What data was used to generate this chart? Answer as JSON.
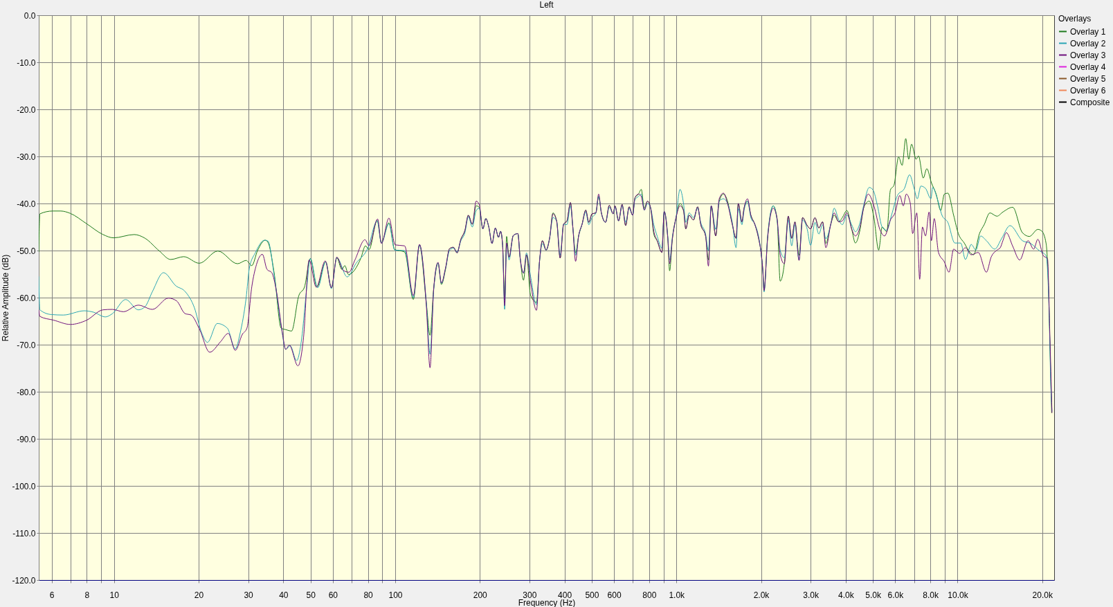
{
  "chart_data": {
    "type": "line",
    "title": "Left",
    "xlabel": "Frequency (Hz)",
    "ylabel": "Relative Amplitude (dB)",
    "legend_title": "Overlays",
    "log": "x",
    "grid": true,
    "legend": "top right",
    "xlim": [
      5.4,
      22050
    ],
    "ylim": [
      -120,
      0
    ],
    "xticks": [
      6,
      {
        "value": 7,
        "label": null
      },
      8,
      {
        "value": 9,
        "label": null
      },
      10,
      20,
      30,
      40,
      50,
      60,
      {
        "value": 70,
        "label": null
      },
      80,
      {
        "value": 90,
        "label": null
      },
      100,
      200,
      300,
      400,
      500,
      600,
      {
        "value": 700,
        "label": null
      },
      800,
      {
        "value": 900,
        "label": null
      },
      {
        "value": 1000,
        "label": "1.0k"
      },
      {
        "value": 2000,
        "label": "2.0k"
      },
      {
        "value": 3000,
        "label": "3.0k"
      },
      {
        "value": 4000,
        "label": "4.0k"
      },
      {
        "value": 5000,
        "label": "5.0k"
      },
      {
        "value": 6000,
        "label": "6.0k"
      },
      {
        "value": 7000,
        "label": null
      },
      {
        "value": 8000,
        "label": "8.0k"
      },
      {
        "value": 9000,
        "label": null
      },
      {
        "value": 10000,
        "label": "10.0k"
      },
      {
        "value": 20000,
        "label": "20.0k"
      }
    ],
    "yticks": [
      {
        "value": 0,
        "label": "0.0"
      },
      {
        "value": -10,
        "label": "-10.0"
      },
      {
        "value": -20,
        "label": "-20.0"
      },
      {
        "value": -30,
        "label": "-30.0"
      },
      {
        "value": -40,
        "label": "-40.0"
      },
      {
        "value": -50,
        "label": "-50.0"
      },
      {
        "value": -60,
        "label": "-60.0"
      },
      {
        "value": -70,
        "label": "-70.0"
      },
      {
        "value": -80,
        "label": "-80.0"
      },
      {
        "value": -90,
        "label": "-90.0"
      },
      {
        "value": -100,
        "label": "-100.0"
      },
      {
        "value": -110,
        "label": "-110.0"
      },
      {
        "value": -120,
        "label": "-120.0"
      }
    ],
    "series": [
      {
        "name": "Overlay 1",
        "color": "#1e7a1e",
        "x": [
          5.4,
          5.45,
          6.05,
          6.47,
          6.99,
          7.99,
          9.14,
          9.96,
          11.8,
          12.9,
          14.5,
          15.9,
          17.7,
          20.1,
          23.4,
          27.5,
          29.5,
          30.9,
          32.4,
          34.5,
          35.3,
          37.1,
          39.3,
          40.8,
          42.8,
          45.4,
          47.6,
          49.9,
          52.7,
          56.6,
          59.3,
          62.0,
          64.6,
          66.2,
          68.2,
          75.4,
          78.4,
          80.7,
          86.3,
          89.3,
          95.0,
          99.6,
          108,
          116,
          122,
          129,
          133,
          137,
          142,
          146,
          151,
          156,
          161,
          166,
          171,
          177,
          182,
          188,
          194,
          199,
          205,
          210,
          215,
          221,
          227,
          233,
          237,
          241,
          245,
          249,
          254,
          263,
          273,
          278,
          286,
          293,
          303,
          318,
          326,
          334,
          344,
          354,
          364,
          375,
          386,
          397,
          408,
          420,
          428,
          438,
          449,
          462,
          476,
          488,
          501,
          517,
          529,
          541,
          560,
          577,
          596,
          605,
          623,
          641,
          660,
          679,
          699,
          712,
          733,
          750,
          769,
          789,
          810,
          831,
          855,
          888,
          905,
          932,
          946,
          968,
          997,
          1030,
          1060,
          1080,
          1110,
          1150,
          1190,
          1220,
          1270,
          1300,
          1330,
          1380,
          1420,
          1470,
          1520,
          1580,
          1630,
          1660,
          1710,
          1740,
          1790,
          1840,
          1900,
          1960,
          2000,
          2030,
          2050,
          2110,
          2210,
          2280,
          2340,
          2420,
          2500,
          2570,
          2640,
          2730,
          2810,
          2920,
          3000,
          3110,
          3210,
          3310,
          3400,
          3540,
          3640,
          3780,
          3890,
          4040,
          4200,
          4330,
          4500,
          4630,
          4720,
          4850,
          5040,
          5240,
          5390,
          5600,
          5770,
          5940,
          6170,
          6350,
          6540,
          6700,
          6860,
          7120,
          7260,
          7550,
          7770,
          8070,
          8390,
          8710,
          8970,
          9230,
          9680,
          10060,
          10560,
          11070,
          11400,
          11960,
          12430,
          13030,
          13800,
          14500,
          15700,
          17000,
          18000,
          19300,
          19950,
          20640,
          21020,
          21360,
          21600
        ],
        "values": [
          -50.3,
          -42.2,
          -41.6,
          -41.6,
          -42.1,
          -44.3,
          -46.6,
          -47.3,
          -46.6,
          -47.4,
          -50.1,
          -51.9,
          -51.3,
          -52.7,
          -50.1,
          -52.8,
          -52.1,
          -53.2,
          -50.0,
          -47.8,
          -48.3,
          -54.7,
          -66.5,
          -66.8,
          -67.1,
          -59.6,
          -57.7,
          -51.7,
          -57.7,
          -52.4,
          -57.9,
          -51.5,
          -54.0,
          -53.2,
          -55.1,
          -51.7,
          -49.0,
          -49.8,
          -43.6,
          -48.3,
          -44.1,
          -49.8,
          -50.3,
          -60.4,
          -48.8,
          -61.1,
          -68.0,
          -58.2,
          -52.7,
          -57.2,
          -54.0,
          -49.6,
          -49.3,
          -50.5,
          -47.7,
          -45.7,
          -42.5,
          -44.4,
          -40.5,
          -40.8,
          -45.4,
          -43.2,
          -44.9,
          -48.5,
          -45.2,
          -47.2,
          -45.9,
          -48.9,
          -60.5,
          -47.0,
          -51.4,
          -46.8,
          -46.4,
          -51.4,
          -56.3,
          -50.9,
          -59.5,
          -61.0,
          -52.3,
          -47.9,
          -49.9,
          -47.4,
          -42.0,
          -43.7,
          -51.6,
          -44.4,
          -43.7,
          -39.8,
          -44.9,
          -50.5,
          -46.9,
          -44.4,
          -41.4,
          -44.0,
          -42.2,
          -42.0,
          -38.5,
          -42.0,
          -44.0,
          -40.4,
          -42.2,
          -40.5,
          -43.7,
          -40.2,
          -44.7,
          -40.7,
          -42.5,
          -38.8,
          -38.0,
          -37.0,
          -41.0,
          -39.5,
          -41.0,
          -46.5,
          -48.0,
          -50.4,
          -41.7,
          -47.4,
          -54.3,
          -47.4,
          -43.0,
          -40.0,
          -41.5,
          -45.4,
          -42.5,
          -43.5,
          -40.7,
          -44.4,
          -46.9,
          -52.0,
          -40.5,
          -46.9,
          -39.5,
          -38.0,
          -39.5,
          -44.4,
          -47.4,
          -40.0,
          -43.9,
          -41.0,
          -39.5,
          -42.5,
          -44.4,
          -47.4,
          -50.4,
          -54.3,
          -58.5,
          -47.4,
          -40.5,
          -43.2,
          -56.5,
          -52.8,
          -42.7,
          -47.4,
          -43.9,
          -51.0,
          -43.0,
          -44.7,
          -45.4,
          -43.0,
          -45.2,
          -43.9,
          -48.5,
          -44.4,
          -42.5,
          -43.9,
          -43.0,
          -41.5,
          -45.4,
          -48.4,
          -45.5,
          -41.0,
          -40.0,
          -39.5,
          -43.0,
          -49.9,
          -45.0,
          -46.0,
          -37.1,
          -36.1,
          -30.1,
          -31.9,
          -26.2,
          -30.6,
          -27.4,
          -30.6,
          -29.9,
          -34.6,
          -32.6,
          -35.6,
          -38.0,
          -41.5,
          -38.0,
          -37.8,
          -42.5,
          -46.4,
          -48.4,
          -50.4,
          -50.9,
          -46.4,
          -44.5,
          -42.0,
          -42.7,
          -41.8,
          -40.8,
          -46.2,
          -47.0,
          -45.5,
          -45.9,
          -48.5,
          -56.7,
          -73.1,
          -84.5
        ]
      },
      {
        "name": "Overlay 2",
        "color": "#2aa5b5",
        "x": [
          5.4,
          5.45,
          5.99,
          6.6,
          7.84,
          8.46,
          9.32,
          9.87,
          11.0,
          12.2,
          12.9,
          13.7,
          15.0,
          16.6,
          17.9,
          19.3,
          20.5,
          21.5,
          23.3,
          25.3,
          27.0,
          28.1,
          29.5,
          30.3,
          31.8,
          34.3,
          35.3,
          37.1,
          39.3,
          40.8,
          42.3,
          44.6,
          46.3,
          48.5,
          49.9,
          53.0,
          56.6,
          59.3,
          62.0,
          67.5,
          72.6,
          79.9,
          86.3,
          89.3,
          95.0,
          99.6,
          108,
          116,
          122,
          129,
          133,
          137,
          142,
          146,
          151,
          156,
          161,
          166,
          171,
          177,
          182,
          188,
          194,
          199,
          205,
          210,
          215,
          221,
          227,
          233,
          237,
          241,
          245,
          249,
          254,
          263,
          273,
          278,
          286,
          293,
          303,
          318,
          326,
          334,
          344,
          354,
          364,
          375,
          386,
          397,
          408,
          420,
          428,
          438,
          449,
          462,
          476,
          488,
          501,
          517,
          529,
          541,
          560,
          577,
          596,
          605,
          623,
          641,
          660,
          679,
          699,
          712,
          733,
          750,
          769,
          789,
          810,
          831,
          855,
          888,
          905,
          932,
          946,
          968,
          997,
          1030,
          1060,
          1080,
          1110,
          1150,
          1190,
          1220,
          1270,
          1300,
          1330,
          1380,
          1420,
          1470,
          1520,
          1580,
          1630,
          1660,
          1710,
          1740,
          1790,
          1840,
          1900,
          1960,
          2000,
          2030,
          2050,
          2110,
          2210,
          2280,
          2340,
          2420,
          2500,
          2570,
          2640,
          2730,
          2810,
          2920,
          3000,
          3110,
          3210,
          3310,
          3400,
          3540,
          3640,
          3780,
          3890,
          4040,
          4200,
          4330,
          4500,
          4630,
          4850,
          5000,
          5190,
          5390,
          5600,
          5820,
          6110,
          6470,
          6750,
          6990,
          7190,
          7400,
          7690,
          8040,
          8150,
          8470,
          8800,
          9230,
          9780,
          10260,
          10660,
          11180,
          11620,
          12070,
          12660,
          13550,
          14350,
          15360,
          17000,
          18200,
          19500,
          20640,
          21120,
          21460,
          21660
        ],
        "values": [
          -55.5,
          -62.6,
          -63.6,
          -63.7,
          -62.8,
          -63.1,
          -64.1,
          -63.4,
          -60.4,
          -62.6,
          -61.9,
          -58.7,
          -54.7,
          -57.5,
          -58.7,
          -62.1,
          -67.5,
          -69.5,
          -65.5,
          -66.5,
          -70.9,
          -67.5,
          -60.1,
          -53.7,
          -50.5,
          -47.8,
          -48.0,
          -55.2,
          -66.0,
          -71.0,
          -70.2,
          -73.4,
          -69.5,
          -57.7,
          -51.7,
          -57.9,
          -52.4,
          -58.1,
          -51.5,
          -55.6,
          -52.7,
          -49.5,
          -43.7,
          -48.4,
          -44.3,
          -49.9,
          -50.0,
          -60.0,
          -48.8,
          -61.0,
          -72.0,
          -58.5,
          -52.7,
          -57.0,
          -53.8,
          -50.0,
          -49.5,
          -50.3,
          -48.0,
          -46.2,
          -42.8,
          -45.0,
          -41.5,
          -41.0,
          -45.4,
          -43.2,
          -44.9,
          -48.5,
          -45.2,
          -47.2,
          -45.9,
          -48.9,
          -62.5,
          -48.6,
          -52.0,
          -46.8,
          -46.4,
          -51.4,
          -54.8,
          -50.5,
          -55.5,
          -61.5,
          -52.3,
          -48.5,
          -49.9,
          -47.4,
          -43.0,
          -43.7,
          -51.0,
          -44.4,
          -44.5,
          -40.5,
          -44.9,
          -51.0,
          -46.9,
          -44.4,
          -41.8,
          -44.5,
          -43.0,
          -42.0,
          -38.5,
          -42.0,
          -44.0,
          -40.8,
          -42.2,
          -40.8,
          -43.7,
          -40.5,
          -44.0,
          -41.0,
          -42.5,
          -39.2,
          -38.5,
          -38.0,
          -41.4,
          -40.0,
          -41.0,
          -44.5,
          -47.0,
          -49.5,
          -41.7,
          -47.0,
          -52.0,
          -47.0,
          -43.0,
          -37.0,
          -40.0,
          -44.0,
          -42.0,
          -43.0,
          -41.0,
          -44.0,
          -46.5,
          -50.0,
          -40.5,
          -45.5,
          -39.5,
          -39.0,
          -40.0,
          -44.0,
          -49.4,
          -41.0,
          -44.5,
          -41.5,
          -39.5,
          -43.0,
          -44.4,
          -47.0,
          -50.4,
          -54.5,
          -58.8,
          -47.0,
          -40.5,
          -43.5,
          -50.0,
          -51.5,
          -43.5,
          -49.0,
          -44.5,
          -52.0,
          -43.5,
          -45.5,
          -48.9,
          -44.0,
          -46.5,
          -44.5,
          -47.5,
          -44.4,
          -41.0,
          -43.5,
          -44.5,
          -42.5,
          -44.5,
          -46.0,
          -44.0,
          -40.5,
          -36.6,
          -37.1,
          -40.5,
          -45.0,
          -45.7,
          -42.5,
          -38.3,
          -36.8,
          -33.9,
          -36.6,
          -39.0,
          -36.3,
          -36.8,
          -39.0,
          -36.6,
          -39.0,
          -42.5,
          -44.0,
          -48.4,
          -48.4,
          -51.9,
          -48.7,
          -49.9,
          -46.9,
          -47.9,
          -49.7,
          -47.4,
          -44.7,
          -47.9,
          -48.5,
          -50.0,
          -51.1,
          -61.4,
          -78.9,
          -84.2
        ]
      },
      {
        "name": "Overlay 3",
        "color": "#6e0f7c",
        "x": [
          5.4,
          5.45,
          6.11,
          6.99,
          7.99,
          9.14,
          9.87,
          10.8,
          12.2,
          13.7,
          15.6,
          16.7,
          17.9,
          18.8,
          20.1,
          21.9,
          23.9,
          25.5,
          27.0,
          28.6,
          29.7,
          30.9,
          32.1,
          33.7,
          35.0,
          36.4,
          37.8,
          39.7,
          40.8,
          42.0,
          45.1,
          47.2,
          49.4,
          52.4,
          56.4,
          59.3,
          62.0,
          65.3,
          68.5,
          71.9,
          78.1,
          80.7,
          86.6,
          89.3,
          95.0,
          100,
          108,
          116,
          122,
          129,
          133,
          137,
          142,
          146,
          151,
          156,
          161,
          166,
          171,
          177,
          182,
          188,
          194,
          199,
          205,
          210,
          215,
          221,
          227,
          233,
          237,
          241,
          245,
          249,
          254,
          263,
          273,
          278,
          286,
          293,
          303,
          318,
          326,
          334,
          344,
          354,
          364,
          375,
          386,
          397,
          408,
          420,
          428,
          438,
          449,
          462,
          476,
          488,
          501,
          517,
          529,
          541,
          560,
          577,
          596,
          605,
          623,
          641,
          660,
          679,
          699,
          712,
          733,
          750,
          769,
          789,
          810,
          831,
          855,
          888,
          905,
          932,
          946,
          968,
          997,
          1030,
          1060,
          1080,
          1110,
          1150,
          1190,
          1220,
          1270,
          1300,
          1330,
          1380,
          1420,
          1470,
          1520,
          1580,
          1630,
          1660,
          1710,
          1740,
          1790,
          1840,
          1900,
          1960,
          2000,
          2030,
          2050,
          2110,
          2210,
          2280,
          2340,
          2420,
          2500,
          2570,
          2640,
          2730,
          2810,
          2920,
          3000,
          3110,
          3210,
          3310,
          3400,
          3540,
          3640,
          3780,
          3890,
          4040,
          4200,
          4330,
          4500,
          4630,
          4810,
          5040,
          5290,
          5500,
          5770,
          5990,
          6230,
          6410,
          6570,
          6790,
          6920,
          7160,
          7330,
          7500,
          7690,
          7920,
          8070,
          8260,
          8550,
          8970,
          9320,
          9680,
          10160,
          10660,
          11180,
          11840,
          12660,
          13160,
          13810,
          14180,
          14490,
          14900,
          15710,
          16630,
          17810,
          18640,
          19290,
          20180,
          20880,
          21270,
          21660
        ],
        "values": [
          -62.6,
          -64.0,
          -64.8,
          -65.7,
          -64.8,
          -62.6,
          -62.5,
          -63.0,
          -61.6,
          -62.5,
          -60.1,
          -60.7,
          -63.4,
          -63.7,
          -66.6,
          -71.6,
          -69.4,
          -67.6,
          -71.2,
          -67.8,
          -66.5,
          -57.7,
          -53.0,
          -50.8,
          -54.0,
          -54.7,
          -58.6,
          -67.5,
          -71.0,
          -70.1,
          -74.5,
          -68.5,
          -52.0,
          -57.8,
          -52.2,
          -57.9,
          -51.4,
          -54.2,
          -54.6,
          -52.0,
          -47.7,
          -49.0,
          -43.3,
          -48.5,
          -43.1,
          -48.8,
          -49.0,
          -59.6,
          -48.7,
          -61.6,
          -74.9,
          -58.2,
          -52.5,
          -56.9,
          -53.7,
          -49.6,
          -49.3,
          -50.5,
          -47.7,
          -45.7,
          -42.5,
          -44.4,
          -39.5,
          -40.2,
          -45.4,
          -43.2,
          -44.9,
          -48.5,
          -45.2,
          -47.2,
          -45.9,
          -48.9,
          -61.7,
          -48.4,
          -51.4,
          -46.8,
          -46.4,
          -51.4,
          -54.8,
          -50.9,
          -56.8,
          -62.7,
          -52.3,
          -47.9,
          -49.9,
          -47.4,
          -42.2,
          -43.7,
          -51.6,
          -44.4,
          -43.7,
          -39.8,
          -44.9,
          -52.3,
          -46.9,
          -44.4,
          -41.4,
          -44.0,
          -42.2,
          -42.0,
          -38.0,
          -42.0,
          -44.0,
          -40.4,
          -42.2,
          -40.5,
          -43.7,
          -40.2,
          -44.7,
          -40.7,
          -42.5,
          -38.8,
          -38.0,
          -38.5,
          -41.4,
          -39.5,
          -41.0,
          -45.9,
          -47.9,
          -50.4,
          -41.7,
          -47.4,
          -52.8,
          -47.4,
          -43.0,
          -40.5,
          -41.5,
          -45.4,
          -42.5,
          -43.5,
          -40.7,
          -44.4,
          -46.9,
          -53.3,
          -40.5,
          -46.9,
          -39.0,
          -37.8,
          -40.0,
          -44.4,
          -47.4,
          -40.0,
          -43.9,
          -41.0,
          -39.0,
          -42.5,
          -44.4,
          -47.4,
          -50.4,
          -54.3,
          -58.5,
          -47.4,
          -41.0,
          -43.2,
          -50.9,
          -52.8,
          -42.7,
          -47.4,
          -43.9,
          -52.1,
          -43.0,
          -44.7,
          -45.4,
          -43.0,
          -45.2,
          -43.9,
          -49.4,
          -44.4,
          -42.0,
          -43.9,
          -43.7,
          -42.0,
          -45.4,
          -46.9,
          -44.9,
          -41.0,
          -38.0,
          -40.5,
          -45.5,
          -46.9,
          -43.5,
          -42.0,
          -38.3,
          -40.5,
          -38.0,
          -40.0,
          -46.4,
          -42.0,
          -56.1,
          -45.0,
          -46.9,
          -41.8,
          -47.9,
          -43.2,
          -50.4,
          -52.4,
          -54.6,
          -49.7,
          -50.6,
          -49.4,
          -50.9,
          -50.4,
          -54.6,
          -51.4,
          -49.9,
          -49.4,
          -47.9,
          -46.2,
          -49.1,
          -52.0,
          -47.9,
          -49.7,
          -47.6,
          -51.1,
          -51.7,
          -67.2,
          -84.5
        ]
      },
      {
        "name": "Overlay 4",
        "color": "#dd22dd"
      },
      {
        "name": "Overlay 5",
        "color": "#8b5a2b"
      },
      {
        "name": "Overlay 6",
        "color": "#f0885a"
      },
      {
        "name": "Composite",
        "color": "#000000"
      }
    ]
  }
}
